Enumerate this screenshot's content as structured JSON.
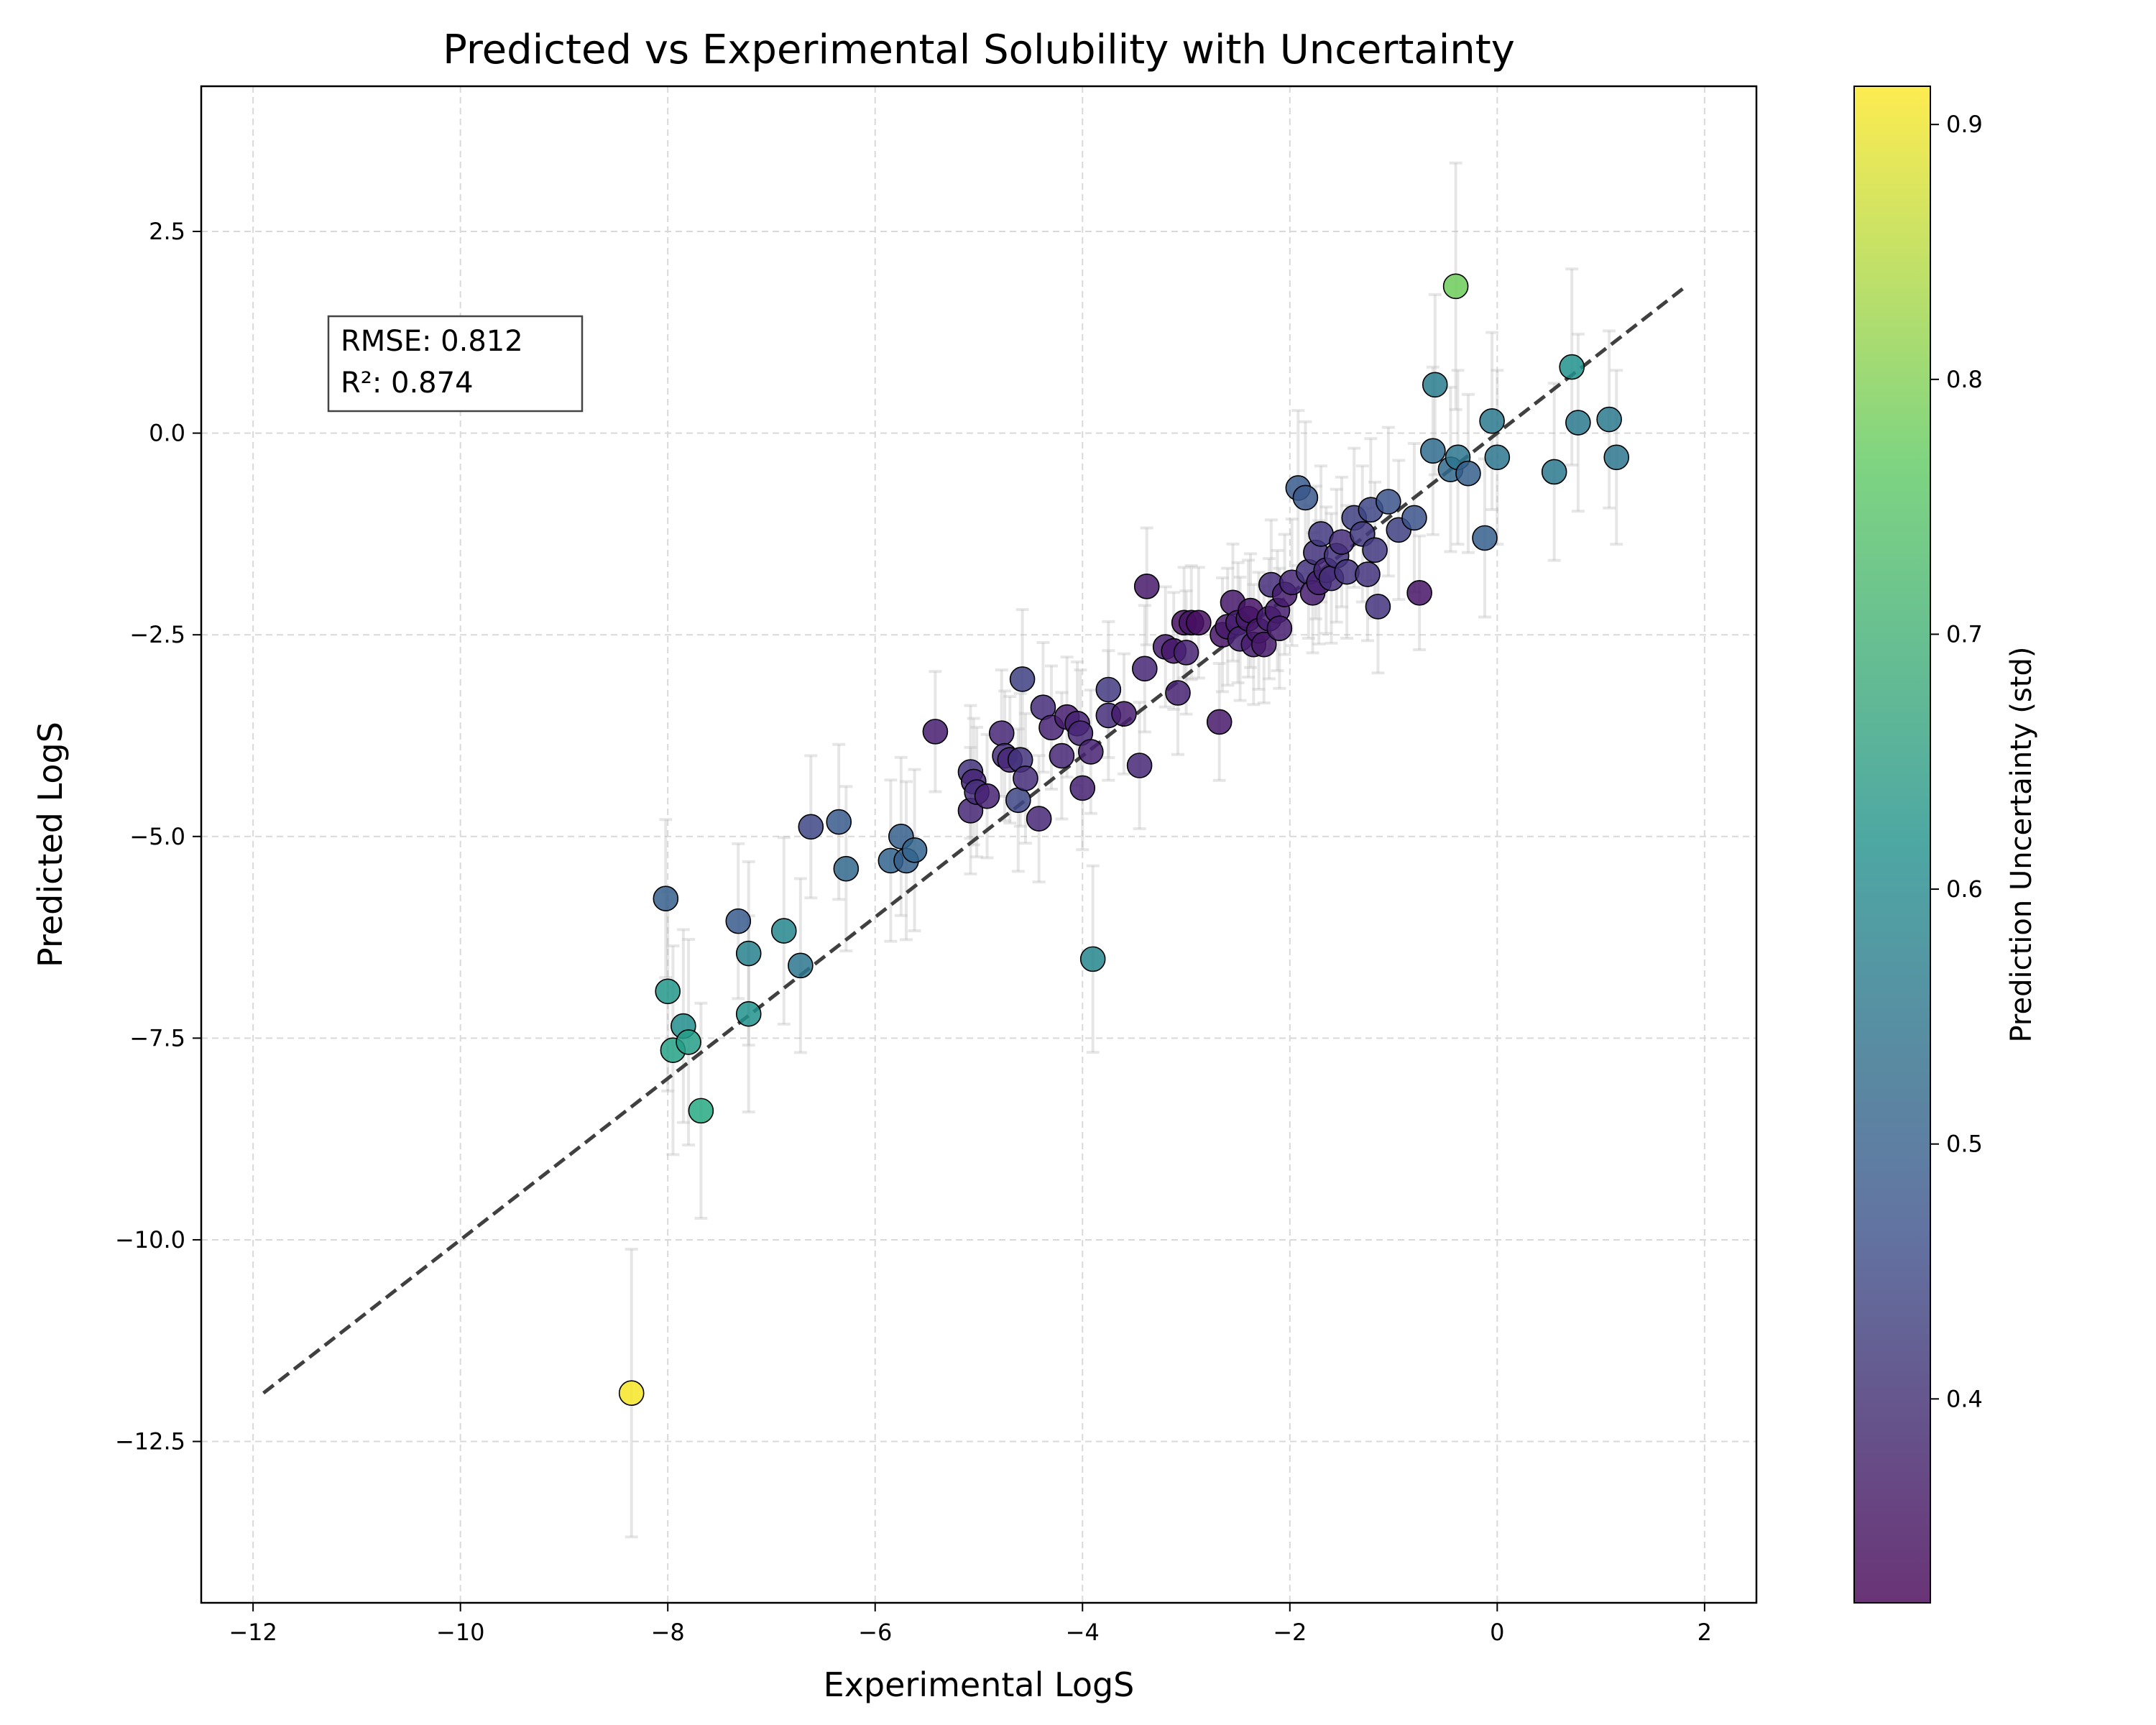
{
  "chart_data": {
    "type": "scatter",
    "title": "Predicted vs Experimental Solubility with Uncertainty",
    "xlabel": "Experimental LogS",
    "ylabel": "Predicted LogS",
    "xlim": [
      -12.5,
      2.5
    ],
    "ylim": [
      -14.5,
      4.3
    ],
    "x_ticks": [
      -12,
      -10,
      -8,
      -6,
      -4,
      -2,
      0,
      2
    ],
    "x_tick_labels": [
      "−12",
      "−10",
      "−8",
      "−6",
      "−4",
      "−2",
      "0",
      "2"
    ],
    "y_ticks": [
      -12.5,
      -10,
      -7.5,
      -5,
      -2.5,
      0,
      2.5
    ],
    "y_tick_labels": [
      "−12.5",
      "−10.0",
      "−7.5",
      "−5.0",
      "−2.5",
      "0.0",
      "2.5"
    ],
    "grid": true,
    "stats": {
      "rmse": "RMSE: 0.812",
      "r2": "R²: 0.874"
    },
    "identity_line": {
      "x": [
        -11.9,
        1.8
      ],
      "y": [
        -11.9,
        1.8
      ],
      "style": "dashed",
      "color": "#404040"
    },
    "colorbar": {
      "label": "Prediction Uncertainty (std)",
      "range": [
        0.32,
        0.915
      ],
      "ticks": [
        0.4,
        0.5,
        0.6,
        0.7,
        0.8,
        0.9
      ],
      "tick_labels": [
        "0.4",
        "0.5",
        "0.6",
        "0.7",
        "0.8",
        "0.9"
      ],
      "colormap": "viridis"
    },
    "points": [
      [
        -8.35,
        -11.9,
        0.91
      ],
      [
        -8.02,
        -5.77,
        0.5
      ],
      [
        -8.0,
        -6.92,
        0.63
      ],
      [
        -7.95,
        -7.65,
        0.66
      ],
      [
        -7.85,
        -7.35,
        0.61
      ],
      [
        -7.8,
        -7.55,
        0.65
      ],
      [
        -7.68,
        -8.4,
        0.68
      ],
      [
        -7.32,
        -6.05,
        0.49
      ],
      [
        -7.22,
        -6.45,
        0.58
      ],
      [
        -7.22,
        -7.2,
        0.62
      ],
      [
        -6.88,
        -6.17,
        0.59
      ],
      [
        -6.72,
        -6.6,
        0.55
      ],
      [
        -6.62,
        -4.88,
        0.45
      ],
      [
        -6.35,
        -4.82,
        0.49
      ],
      [
        -6.28,
        -5.4,
        0.52
      ],
      [
        -5.85,
        -5.3,
        0.51
      ],
      [
        -5.75,
        -5.0,
        0.5
      ],
      [
        -5.7,
        -5.3,
        0.5
      ],
      [
        -5.62,
        -5.17,
        0.51
      ],
      [
        -5.42,
        -3.7,
        0.38
      ],
      [
        -5.08,
        -4.68,
        0.4
      ],
      [
        -5.08,
        -4.2,
        0.42
      ],
      [
        -5.05,
        -4.32,
        0.4
      ],
      [
        -5.02,
        -4.45,
        0.41
      ],
      [
        -4.92,
        -4.5,
        0.39
      ],
      [
        -4.78,
        -3.72,
        0.4
      ],
      [
        -4.75,
        -4.0,
        0.41
      ],
      [
        -4.7,
        -4.05,
        0.4
      ],
      [
        -4.62,
        -4.55,
        0.45
      ],
      [
        -4.6,
        -4.05,
        0.42
      ],
      [
        -4.58,
        -3.05,
        0.44
      ],
      [
        -4.55,
        -4.28,
        0.41
      ],
      [
        -4.42,
        -4.78,
        0.4
      ],
      [
        -4.38,
        -3.4,
        0.41
      ],
      [
        -4.3,
        -3.65,
        0.39
      ],
      [
        -4.2,
        -4.0,
        0.4
      ],
      [
        -4.15,
        -3.52,
        0.38
      ],
      [
        -4.05,
        -3.6,
        0.39
      ],
      [
        -4.02,
        -3.72,
        0.4
      ],
      [
        -4.0,
        -4.4,
        0.39
      ],
      [
        -3.92,
        -3.95,
        0.39
      ],
      [
        -3.9,
        -6.52,
        0.59
      ],
      [
        -3.75,
        -3.5,
        0.41
      ],
      [
        -3.75,
        -3.18,
        0.43
      ],
      [
        -3.6,
        -3.48,
        0.38
      ],
      [
        -3.45,
        -4.12,
        0.4
      ],
      [
        -3.4,
        -2.92,
        0.4
      ],
      [
        -3.38,
        -1.9,
        0.37
      ],
      [
        -3.2,
        -2.65,
        0.38
      ],
      [
        -3.12,
        -2.7,
        0.37
      ],
      [
        -3.08,
        -3.22,
        0.39
      ],
      [
        -3.02,
        -2.35,
        0.35
      ],
      [
        -3.0,
        -2.72,
        0.39
      ],
      [
        -2.95,
        -2.35,
        0.36
      ],
      [
        -2.88,
        -2.35,
        0.35
      ],
      [
        -2.68,
        -3.58,
        0.37
      ],
      [
        -2.65,
        -2.5,
        0.36
      ],
      [
        -2.6,
        -2.4,
        0.37
      ],
      [
        -2.55,
        -2.1,
        0.37
      ],
      [
        -2.5,
        -2.35,
        0.38
      ],
      [
        -2.48,
        -2.55,
        0.39
      ],
      [
        -2.4,
        -2.3,
        0.37
      ],
      [
        -2.38,
        -2.2,
        0.36
      ],
      [
        -2.35,
        -2.62,
        0.38
      ],
      [
        -2.3,
        -2.45,
        0.37
      ],
      [
        -2.25,
        -2.62,
        0.37
      ],
      [
        -2.2,
        -2.3,
        0.38
      ],
      [
        -2.18,
        -1.88,
        0.41
      ],
      [
        -2.12,
        -2.2,
        0.38
      ],
      [
        -2.1,
        -2.42,
        0.38
      ],
      [
        -2.05,
        -2.0,
        0.38
      ],
      [
        -1.98,
        -1.85,
        0.4
      ],
      [
        -1.92,
        -0.68,
        0.49
      ],
      [
        -1.85,
        -0.8,
        0.48
      ],
      [
        -1.82,
        -1.72,
        0.42
      ],
      [
        -1.78,
        -1.98,
        0.38
      ],
      [
        -1.75,
        -1.48,
        0.42
      ],
      [
        -1.72,
        -1.85,
        0.39
      ],
      [
        -1.7,
        -1.25,
        0.43
      ],
      [
        -1.65,
        -1.7,
        0.4
      ],
      [
        -1.6,
        -1.8,
        0.41
      ],
      [
        -1.55,
        -1.52,
        0.42
      ],
      [
        -1.5,
        -1.35,
        0.41
      ],
      [
        -1.45,
        -1.72,
        0.42
      ],
      [
        -1.38,
        -1.05,
        0.44
      ],
      [
        -1.3,
        -1.25,
        0.43
      ],
      [
        -1.25,
        -1.75,
        0.42
      ],
      [
        -1.22,
        -0.95,
        0.45
      ],
      [
        -1.18,
        -1.45,
        0.43
      ],
      [
        -1.15,
        -2.15,
        0.42
      ],
      [
        -1.05,
        -0.85,
        0.47
      ],
      [
        -0.95,
        -1.2,
        0.44
      ],
      [
        -0.8,
        -1.05,
        0.47
      ],
      [
        -0.75,
        -1.98,
        0.36
      ],
      [
        -0.62,
        -0.22,
        0.53
      ],
      [
        -0.6,
        0.6,
        0.57
      ],
      [
        -0.45,
        -0.45,
        0.52
      ],
      [
        -0.4,
        1.82,
        0.78
      ],
      [
        -0.38,
        -0.3,
        0.55
      ],
      [
        -0.28,
        -0.5,
        0.5
      ],
      [
        -0.12,
        -1.3,
        0.5
      ],
      [
        -0.05,
        0.15,
        0.56
      ],
      [
        0.0,
        -0.3,
        0.55
      ],
      [
        0.55,
        -0.48,
        0.56
      ],
      [
        0.72,
        0.82,
        0.62
      ],
      [
        0.78,
        0.13,
        0.56
      ],
      [
        1.08,
        0.17,
        0.56
      ],
      [
        1.15,
        -0.3,
        0.55
      ]
    ]
  }
}
